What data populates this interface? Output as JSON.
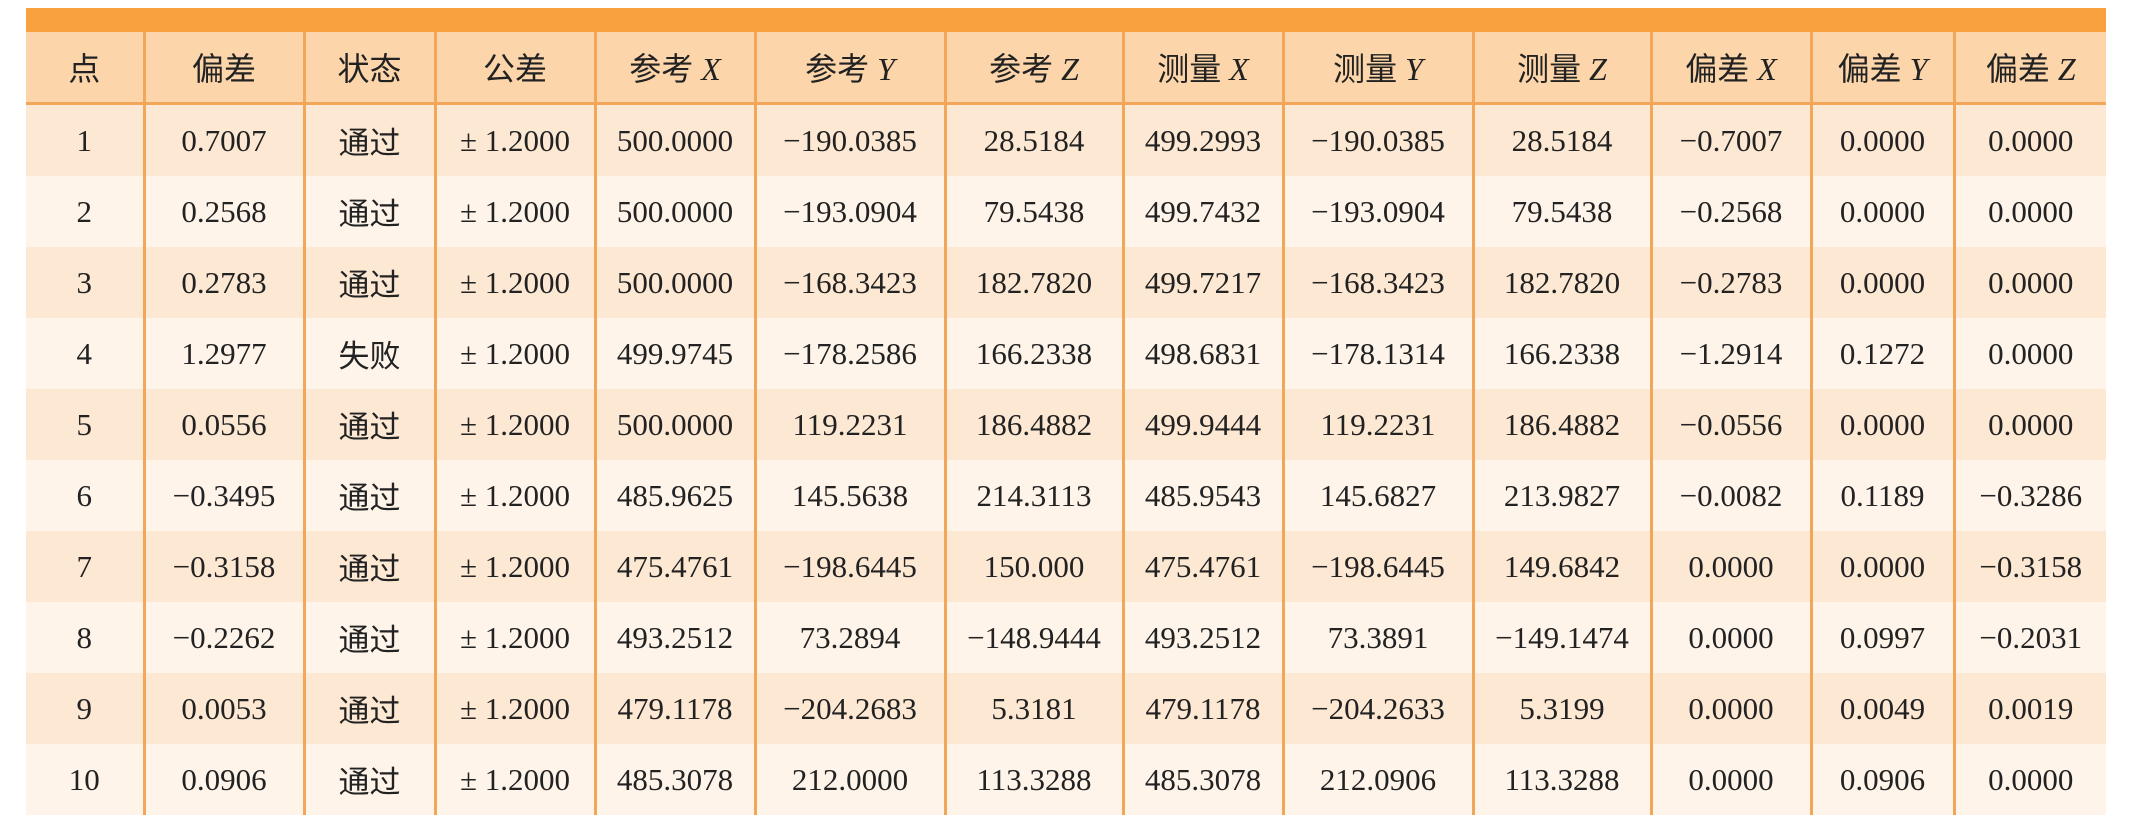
{
  "table": {
    "header_bar_color": "#F9A03F",
    "header_bg_color": "#FCD6AA",
    "row_odd_color": "#FDE8D3",
    "row_even_color": "#FEF4EA",
    "columns": [
      {
        "label": "点",
        "axis": ""
      },
      {
        "label": "偏差",
        "axis": ""
      },
      {
        "label": "状态",
        "axis": ""
      },
      {
        "label": "公差",
        "axis": ""
      },
      {
        "label": "参考 ",
        "axis": "X"
      },
      {
        "label": "参考 ",
        "axis": "Y"
      },
      {
        "label": "参考 ",
        "axis": "Z"
      },
      {
        "label": "测量 ",
        "axis": "X"
      },
      {
        "label": "测量 ",
        "axis": "Y"
      },
      {
        "label": "测量 ",
        "axis": "Z"
      },
      {
        "label": "偏差 ",
        "axis": "X"
      },
      {
        "label": "偏差 ",
        "axis": "Y"
      },
      {
        "label": "偏差 ",
        "axis": "Z"
      }
    ],
    "rows": [
      [
        "1",
        "0.7007",
        "通过",
        "± 1.2000",
        "500.0000",
        "−190.0385",
        "28.5184",
        "499.2993",
        "−190.0385",
        "28.5184",
        "−0.7007",
        "0.0000",
        "0.0000"
      ],
      [
        "2",
        "0.2568",
        "通过",
        "± 1.2000",
        "500.0000",
        "−193.0904",
        "79.5438",
        "499.7432",
        "−193.0904",
        "79.5438",
        "−0.2568",
        "0.0000",
        "0.0000"
      ],
      [
        "3",
        "0.2783",
        "通过",
        "± 1.2000",
        "500.0000",
        "−168.3423",
        "182.7820",
        "499.7217",
        "−168.3423",
        "182.7820",
        "−0.2783",
        "0.0000",
        "0.0000"
      ],
      [
        "4",
        "1.2977",
        "失败",
        "± 1.2000",
        "499.9745",
        "−178.2586",
        "166.2338",
        "498.6831",
        "−178.1314",
        "166.2338",
        "−1.2914",
        "0.1272",
        "0.0000"
      ],
      [
        "5",
        "0.0556",
        "通过",
        "± 1.2000",
        "500.0000",
        "119.2231",
        "186.4882",
        "499.9444",
        "119.2231",
        "186.4882",
        "−0.0556",
        "0.0000",
        "0.0000"
      ],
      [
        "6",
        "−0.3495",
        "通过",
        "± 1.2000",
        "485.9625",
        "145.5638",
        "214.3113",
        "485.9543",
        "145.6827",
        "213.9827",
        "−0.0082",
        "0.1189",
        "−0.3286"
      ],
      [
        "7",
        "−0.3158",
        "通过",
        "± 1.2000",
        "475.4761",
        "−198.6445",
        "150.000",
        "475.4761",
        "−198.6445",
        "149.6842",
        "0.0000",
        "0.0000",
        "−0.3158"
      ],
      [
        "8",
        "−0.2262",
        "通过",
        "± 1.2000",
        "493.2512",
        "73.2894",
        "−148.9444",
        "493.2512",
        "73.3891",
        "−149.1474",
        "0.0000",
        "0.0997",
        "−0.2031"
      ],
      [
        "9",
        "0.0053",
        "通过",
        "± 1.2000",
        "479.1178",
        "−204.2683",
        "5.3181",
        "479.1178",
        "−204.2633",
        "5.3199",
        "0.0000",
        "0.0049",
        "0.0019"
      ],
      [
        "10",
        "0.0906",
        "通过",
        "± 1.2000",
        "485.3078",
        "212.0000",
        "113.3288",
        "485.3078",
        "212.0906",
        "113.3288",
        "0.0000",
        "0.0906",
        "0.0000"
      ]
    ]
  }
}
